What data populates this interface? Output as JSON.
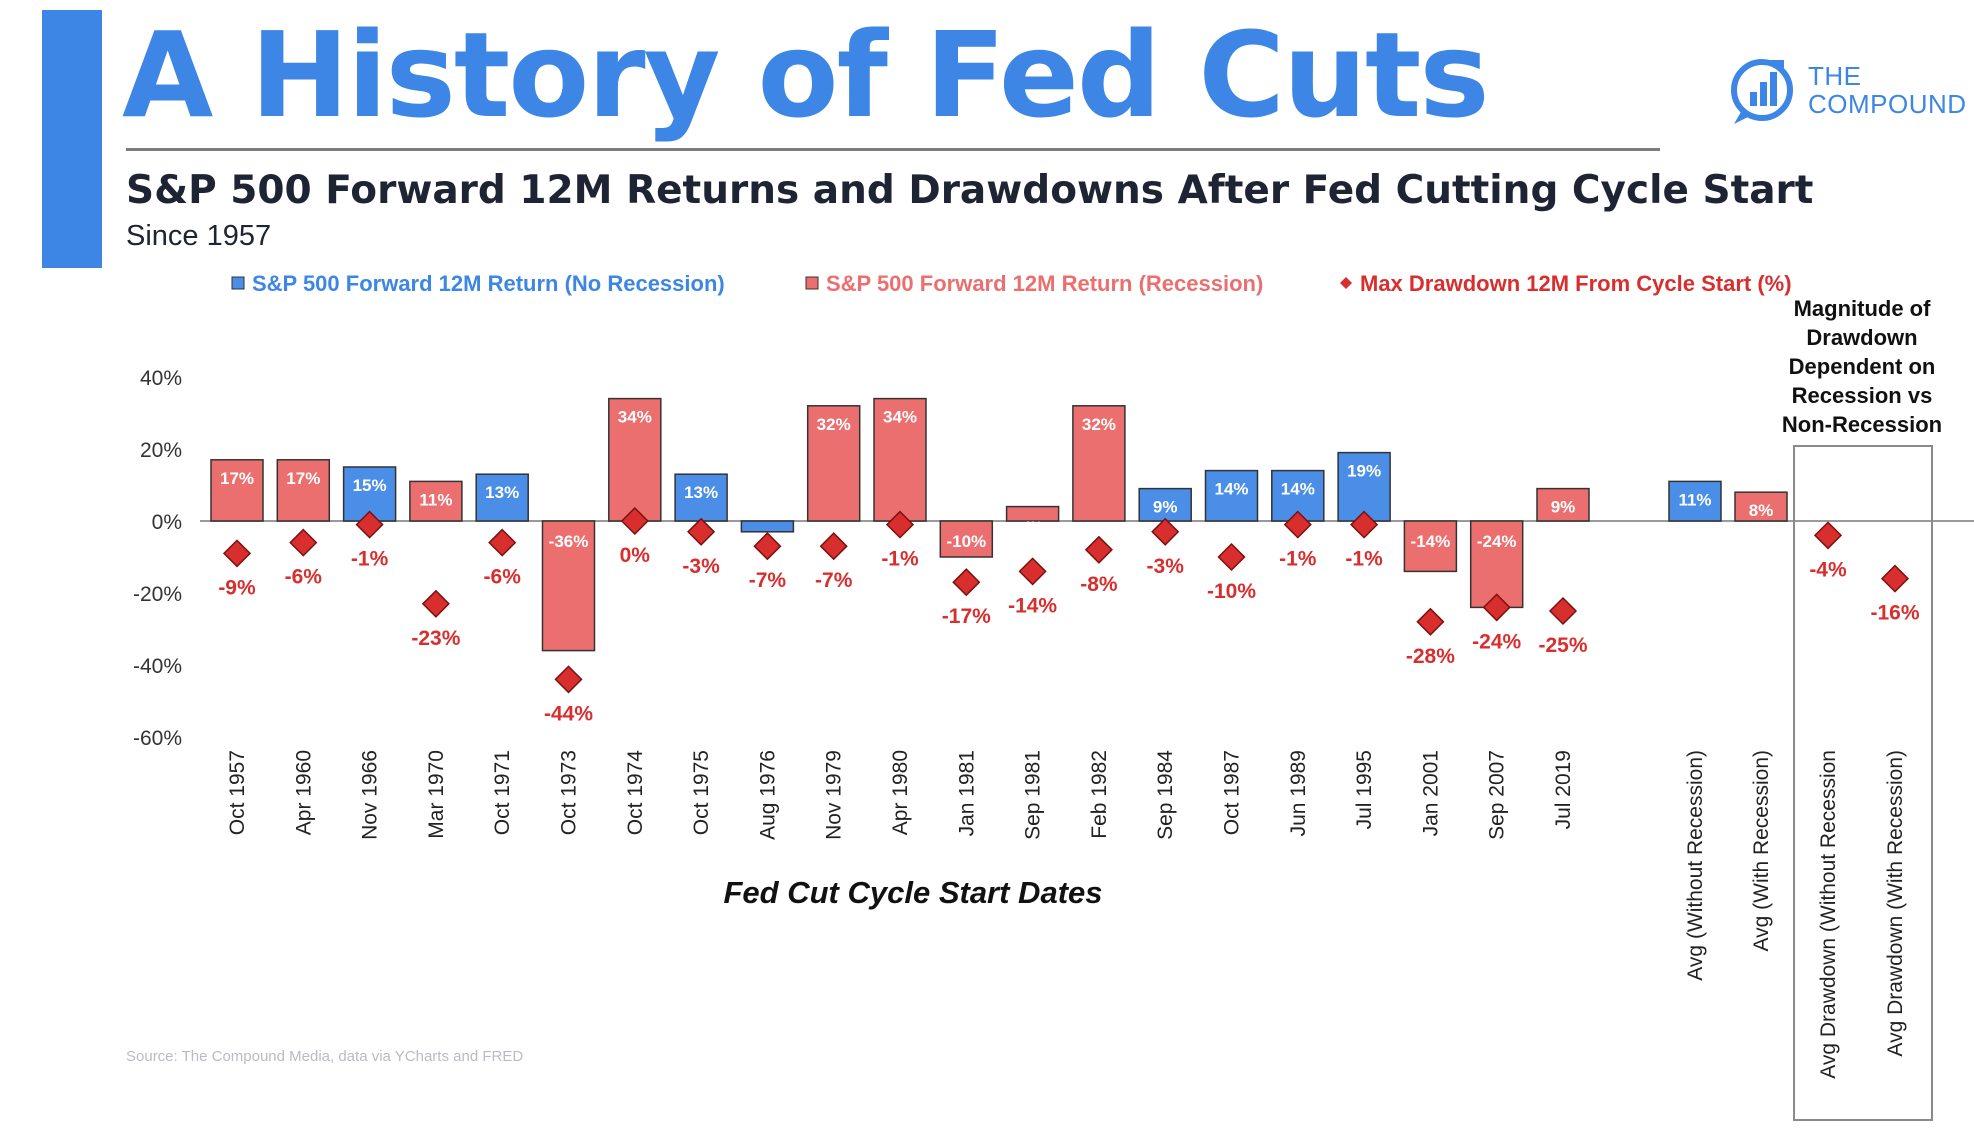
{
  "header": {
    "title": "A History of Fed Cuts",
    "subtitle": "S&P 500 Forward 12M Returns and Drawdowns After Fed Cutting Cycle Start",
    "since": "Since 1957"
  },
  "logo": {
    "line1": "THE",
    "line2": "COMPOUND"
  },
  "source": "Source: The Compound Media, data via YCharts and FRED",
  "colors": {
    "accent": "#3d86e6",
    "no_recession": "#4a8ee8",
    "recession": "#ec6f6f",
    "drawdown": "#d92e2e",
    "zero_line": "#9a9a9a",
    "annotation_box": "#8a8a8a"
  },
  "chart_data": {
    "type": "bar",
    "xlabel": "Fed Cut Cycle Start Dates",
    "ylim": [
      -60,
      40
    ],
    "yticks": [
      "40%",
      "20%",
      "0%",
      "-20%",
      "-40%",
      "-60%"
    ],
    "grid": false,
    "legend_position": "top",
    "legend": [
      {
        "label": "S&P 500 Forward 12M Return (No Recession)",
        "color": "#4a8ee8",
        "marker": "square"
      },
      {
        "label": "S&P 500 Forward 12M Return (Recession)",
        "color": "#ec6f6f",
        "marker": "square"
      },
      {
        "label": "Max Drawdown 12M From Cycle Start (%)",
        "color": "#d92e2e",
        "marker": "diamond"
      }
    ],
    "categories": [
      "Oct 1957",
      "Apr 1960",
      "Nov 1966",
      "Mar 1970",
      "Oct 1971",
      "Oct 1973",
      "Oct 1974",
      "Oct 1975",
      "Aug 1976",
      "Nov 1979",
      "Apr 1980",
      "Jan 1981",
      "Sep 1981",
      "Feb 1982",
      "Sep 1984",
      "Oct 1987",
      "Jun 1989",
      "Jul 1995",
      "Jan 2001",
      "Sep 2007",
      "Jul 2019"
    ],
    "returns": [
      17,
      17,
      15,
      11,
      13,
      -36,
      34,
      13,
      -3,
      32,
      34,
      -10,
      4,
      32,
      9,
      14,
      14,
      19,
      -14,
      -24,
      9
    ],
    "return_labels": [
      "17%",
      "17%",
      "15%",
      "11%",
      "13%",
      "-36%",
      "34%",
      "13%",
      "-3%",
      "32%",
      "34%",
      "-10%",
      "4%",
      "32%",
      "9%",
      "14%",
      "14%",
      "19%",
      "-14%",
      "-24%",
      "9%"
    ],
    "recession": [
      true,
      true,
      false,
      true,
      false,
      true,
      true,
      false,
      false,
      true,
      true,
      true,
      true,
      true,
      false,
      false,
      false,
      false,
      true,
      true,
      true
    ],
    "drawdowns": [
      -9,
      -6,
      -1,
      -23,
      -6,
      -44,
      0,
      -3,
      -7,
      -7,
      -1,
      -17,
      -14,
      -8,
      -3,
      -10,
      -1,
      -1,
      -28,
      -24,
      -25
    ],
    "drawdown_labels": [
      "-9%",
      "-6%",
      "-1%",
      "-23%",
      "-6%",
      "-44%",
      "0%",
      "-3%",
      "-7%",
      "-7%",
      "-1%",
      "-17%",
      "-14%",
      "-8%",
      "-3%",
      "-10%",
      "-1%",
      "-1%",
      "-28%",
      "-24%",
      "-25%"
    ],
    "averages": [
      {
        "label": "Avg (Without Recession)",
        "value": 11,
        "value_label": "11%",
        "recession": false
      },
      {
        "label": "Avg (With Recession)",
        "value": 8,
        "value_label": "8%",
        "recession": true
      }
    ],
    "avg_drawdowns": [
      {
        "label": "Avg Drawdown (Without Recession",
        "value": -4,
        "value_label": "-4%"
      },
      {
        "label": "Avg Drawdown (With Recession)",
        "value": -16,
        "value_label": "-16%"
      }
    ],
    "annotation": [
      "Magnitude of",
      "Drawdown",
      "Dependent on",
      "Recession vs",
      "Non-Recession"
    ]
  }
}
